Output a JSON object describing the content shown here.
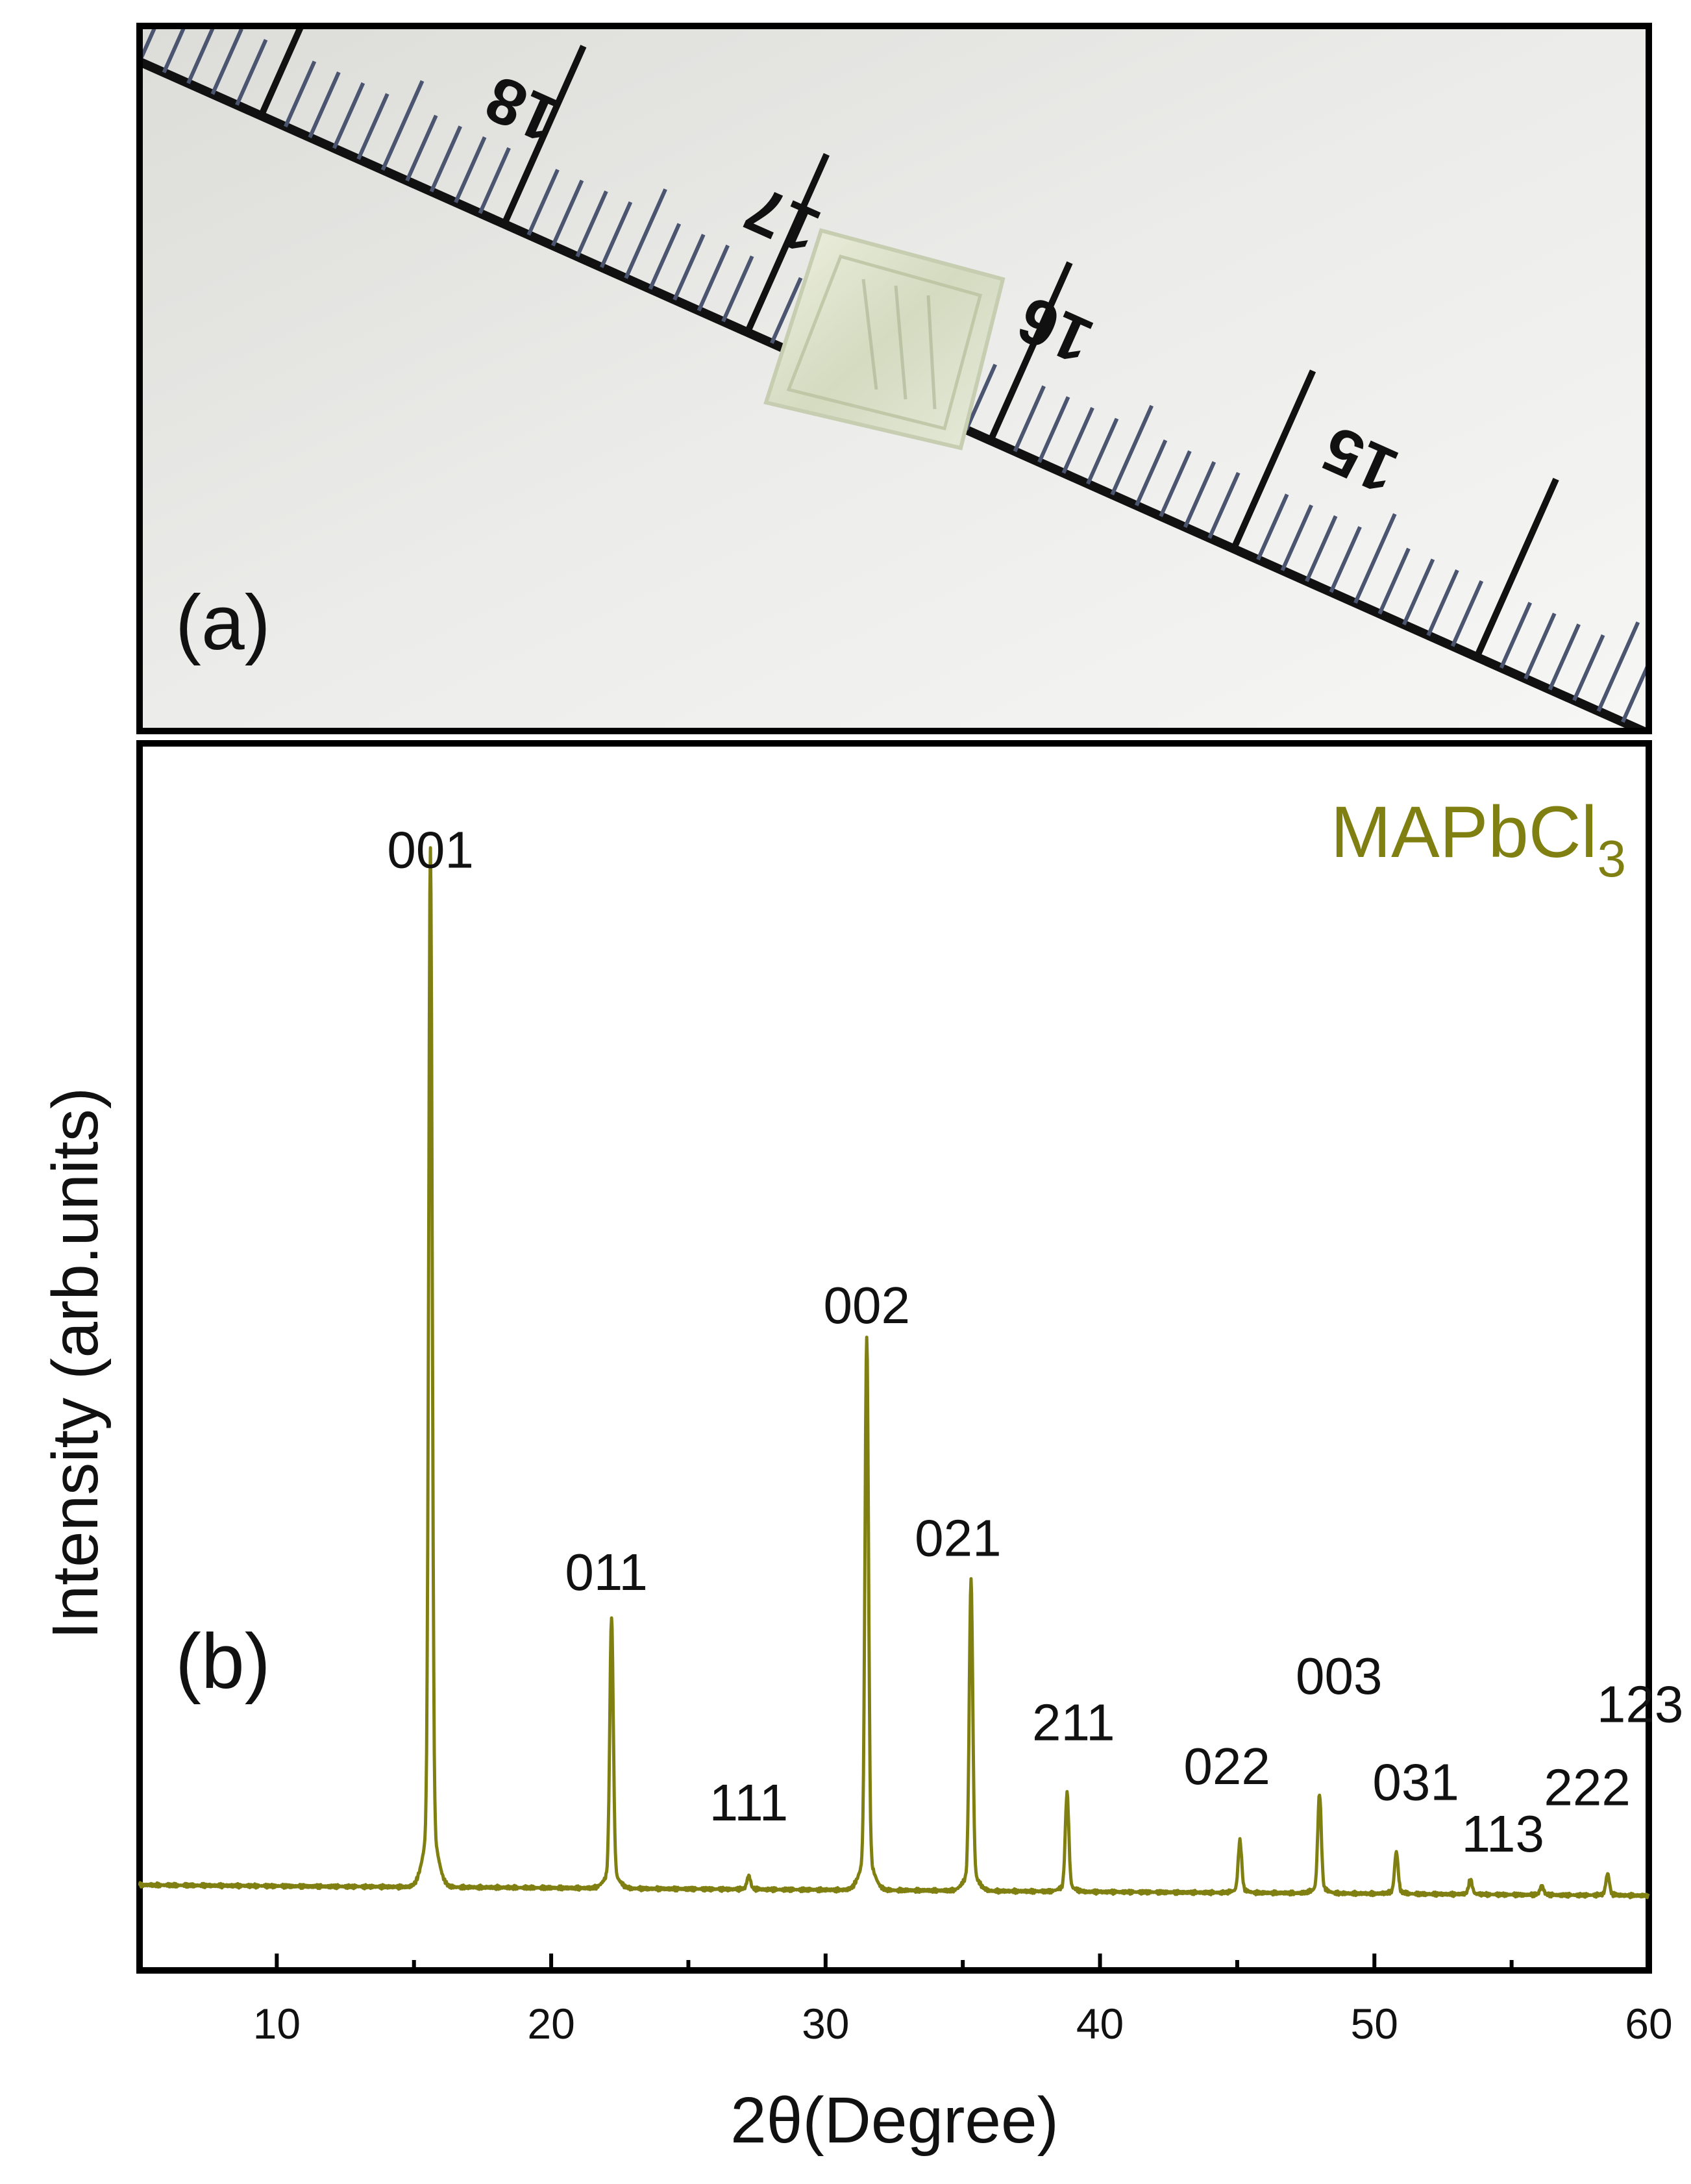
{
  "panel_a": {
    "label": "(a)",
    "ruler_labels": [
      "18",
      "17",
      "16",
      "15"
    ]
  },
  "chart_data": {
    "type": "line",
    "panel_label": "(b)",
    "legend": {
      "text": "MAPbCl",
      "subscript": "3",
      "position": "top-right"
    },
    "xlabel": "2θ(Degree)",
    "ylabel": "Intensity (arb.units)",
    "xlim": [
      5,
      60
    ],
    "ylim": [
      0,
      115
    ],
    "x_ticks": [
      10,
      20,
      30,
      40,
      50,
      60
    ],
    "y_ticks_shown": false,
    "grid": false,
    "baseline": 8,
    "line_color": "#808012",
    "peaks": [
      {
        "x": 15.6,
        "y": 100,
        "label": "001"
      },
      {
        "x": 22.2,
        "y": 32,
        "label": "011"
      },
      {
        "x": 27.2,
        "y": 9.2,
        "label": "111"
      },
      {
        "x": 31.5,
        "y": 57,
        "label": "002"
      },
      {
        "x": 35.3,
        "y": 35.5,
        "label": "021"
      },
      {
        "x": 38.8,
        "y": 16.7,
        "label": "211"
      },
      {
        "x": 45.1,
        "y": 12.6,
        "label": "022"
      },
      {
        "x": 48.0,
        "y": 16.8,
        "label": "003"
      },
      {
        "x": 50.8,
        "y": 11.7,
        "label": "031"
      },
      {
        "x": 53.5,
        "y": 9.3,
        "label": "113"
      },
      {
        "x": 56.1,
        "y": 8.8,
        "label": "222"
      },
      {
        "x": 58.5,
        "y": 9.9,
        "label": "123"
      }
    ]
  }
}
